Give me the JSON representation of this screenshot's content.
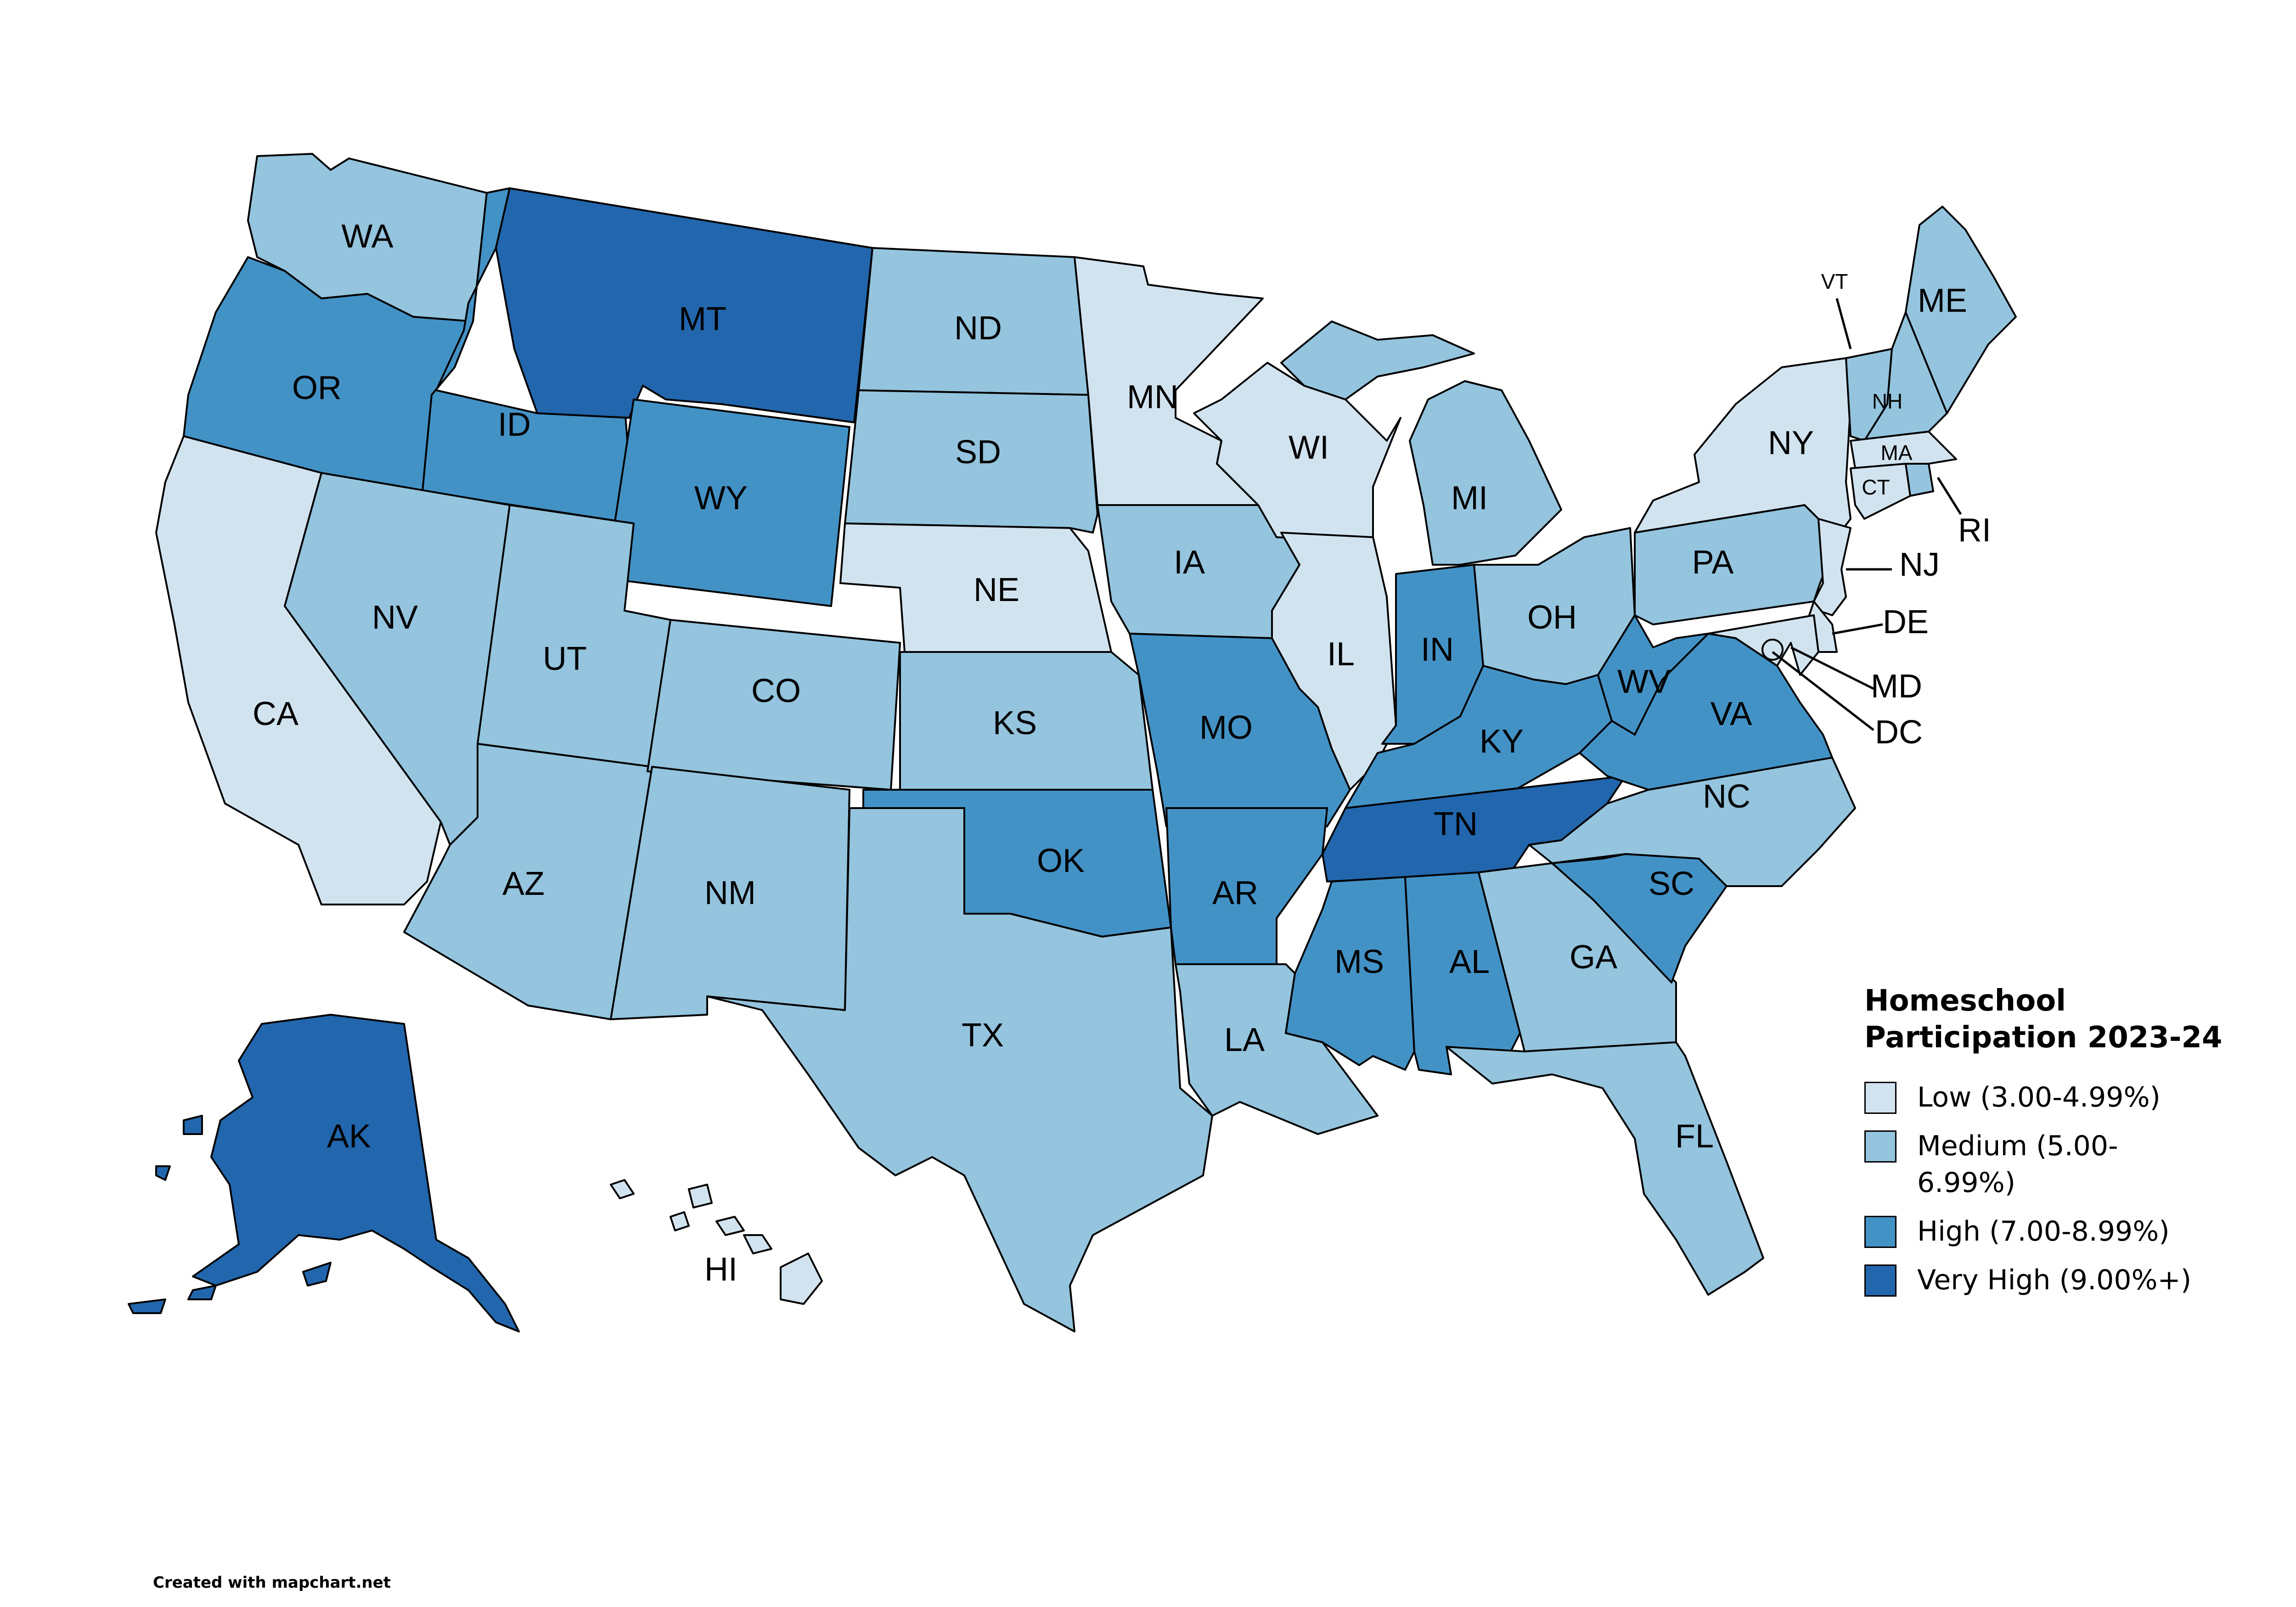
{
  "colors": {
    "low": "#d2e3f0",
    "medium": "#94c4de",
    "high": "#4392c6",
    "very_high": "#2266ad"
  },
  "legend": {
    "title": "Homeschool Participation 2023-24",
    "items": [
      {
        "label": "Low (3.00-4.99%)",
        "level": "low"
      },
      {
        "label": "Medium (5.00-6.99%)",
        "level": "medium"
      },
      {
        "label": "High (7.00-8.99%)",
        "level": "high"
      },
      {
        "label": "Very High (9.00%+)",
        "level": "very_high"
      }
    ]
  },
  "states": {
    "WA": "medium",
    "OR": "high",
    "CA": "low",
    "ID": "high",
    "NV": "medium",
    "MT": "very_high",
    "WY": "high",
    "UT": "medium",
    "AZ": "medium",
    "CO": "medium",
    "NM": "medium",
    "ND": "medium",
    "SD": "medium",
    "NE": "low",
    "KS": "medium",
    "OK": "high",
    "TX": "medium",
    "MN": "low",
    "IA": "medium",
    "MO": "high",
    "AR": "high",
    "LA": "medium",
    "WI": "low",
    "IL": "low",
    "MI": "medium",
    "IN": "high",
    "OH": "medium",
    "KY": "high",
    "TN": "very_high",
    "MS": "high",
    "AL": "high",
    "GA": "medium",
    "FL": "medium",
    "SC": "high",
    "NC": "medium",
    "VA": "high",
    "WV": "high",
    "PA": "medium",
    "NY": "low",
    "VT": "medium",
    "NH": "medium",
    "ME": "medium",
    "MA": "low",
    "RI": "medium",
    "CT": "low",
    "NJ": "low",
    "DE": "low",
    "MD": "low",
    "DC": "low",
    "AK": "very_high",
    "HI": "low"
  },
  "credit": "Created with mapchart.net"
}
